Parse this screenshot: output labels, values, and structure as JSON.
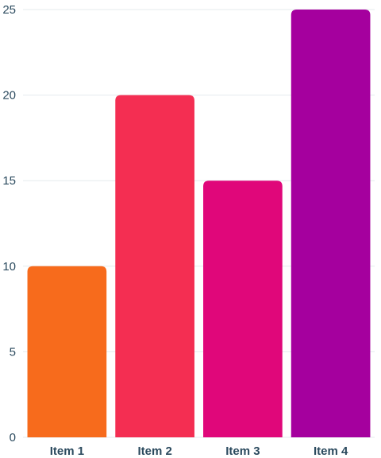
{
  "chart_data": {
    "type": "bar",
    "title": "",
    "xlabel": "",
    "ylabel": "",
    "categories": [
      "Item 1",
      "Item 2",
      "Item 3",
      "Item 4"
    ],
    "values": [
      10,
      20,
      15,
      25
    ],
    "colors": [
      "#f76b1c",
      "#f42e52",
      "#e0077a",
      "#a5009e"
    ],
    "ylim": [
      0,
      25
    ],
    "yticks": [
      "0",
      "5",
      "10",
      "15",
      "20",
      "25"
    ],
    "grid": true,
    "legend": "none"
  }
}
